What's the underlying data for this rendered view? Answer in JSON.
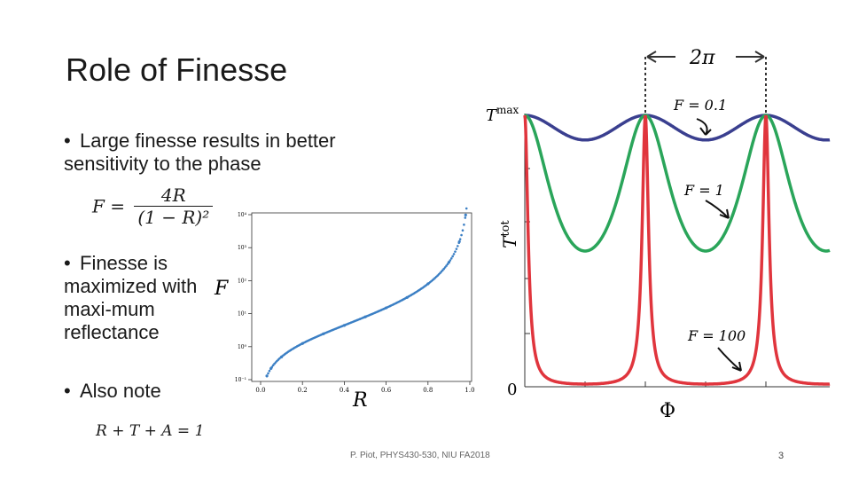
{
  "slide": {
    "title": "Role of Finesse",
    "bullets": [
      {
        "text": "Large finesse results in better sensitivity to the phase"
      },
      {
        "text": "Finesse is maximized with maxi-mum reflectance"
      },
      {
        "text": "Also note"
      }
    ],
    "bullet_symbol": "•",
    "formula_F": {
      "lhs": "F =",
      "numerator": "4R",
      "denominator": "(1 − R)²"
    },
    "equation_RTA": "R + T + A = 1",
    "footer": "P. Piot, PHYS430-530, NIU FA2018",
    "page_number": "3"
  },
  "small_plot": {
    "ylabel": "F",
    "xlabel": "R",
    "x_ticks": [
      "0.0",
      "0.2",
      "0.4",
      "0.6",
      "0.8",
      "1.0"
    ],
    "y_ticks": [
      "10⁻¹",
      "10⁰",
      "10¹",
      "10²",
      "10³",
      "10⁴"
    ]
  },
  "big_plot": {
    "ylabel": "T",
    "ylabel_sup": "tot",
    "ymax_label": "T",
    "ymax_sup": "max",
    "zero_label": "0",
    "xlabel": "Φ",
    "period_label": "2π",
    "curve_labels": [
      "F = 0.1",
      "F = 1",
      "F = 100"
    ]
  },
  "chart_data": [
    {
      "type": "scatter",
      "title": "",
      "xlabel": "R",
      "ylabel": "F",
      "xlim": [
        0,
        1
      ],
      "ylim": [
        0.1,
        10000
      ],
      "y_scale": "log",
      "x": [
        0.03,
        0.05,
        0.1,
        0.2,
        0.3,
        0.4,
        0.5,
        0.6,
        0.7,
        0.8,
        0.9,
        0.95,
        0.98
      ],
      "y": [
        0.13,
        0.22,
        0.49,
        1.25,
        2.45,
        4.4,
        8,
        15,
        31,
        80,
        360,
        1520,
        9800
      ],
      "series": [
        {
          "color": "#3b7fc4"
        }
      ]
    },
    {
      "type": "line",
      "title": "",
      "xlabel": "Φ",
      "ylabel": "T^tot",
      "ylim": [
        0,
        1
      ],
      "series": [
        {
          "name": "F = 0.1",
          "color": "#3a3f8f",
          "F": 0.1
        },
        {
          "name": "F = 1",
          "color": "#2aa55a",
          "F": 1
        },
        {
          "name": "F = 100",
          "color": "#e0353d",
          "F": 100
        }
      ]
    }
  ]
}
